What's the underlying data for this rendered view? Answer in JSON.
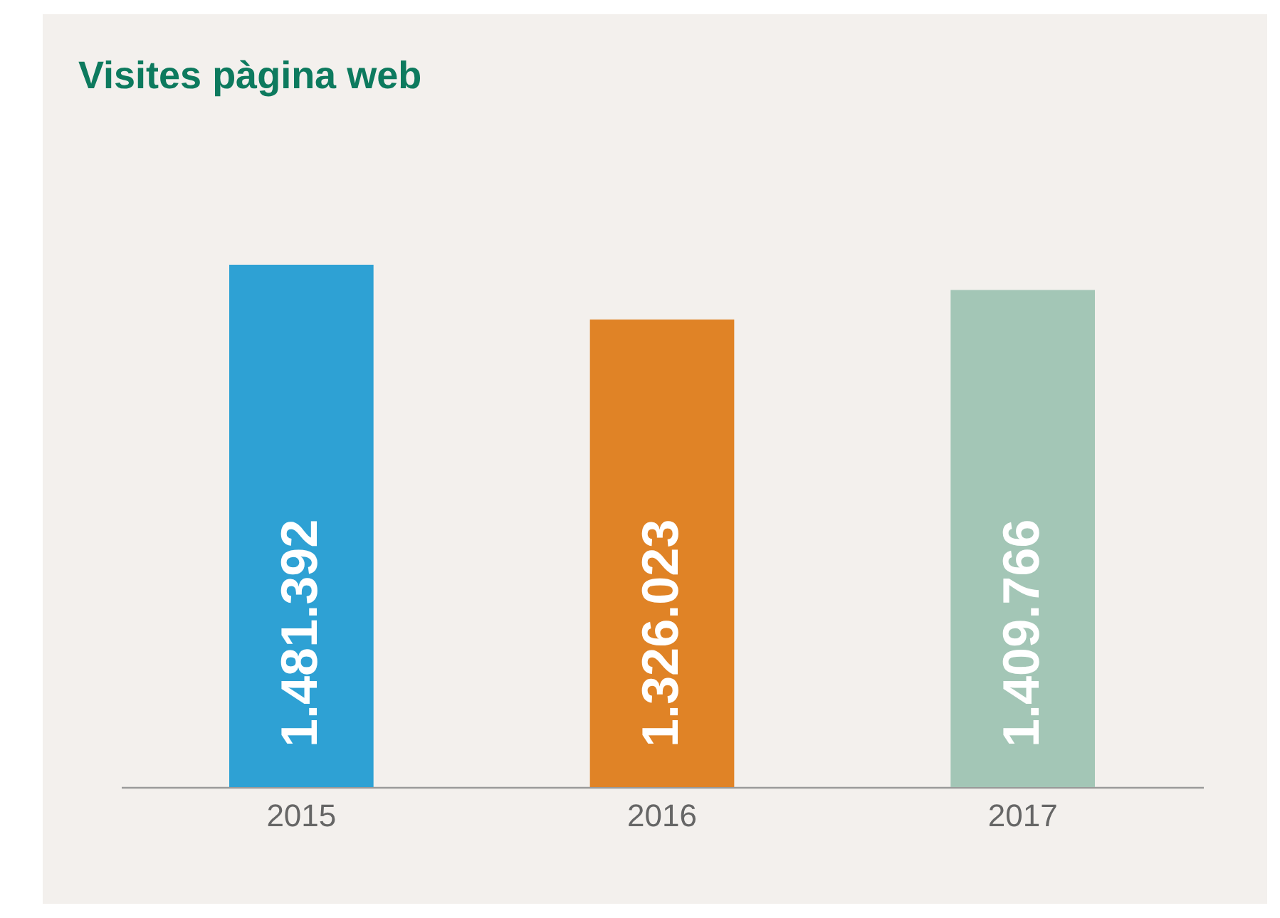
{
  "chart_data": {
    "type": "bar",
    "title": "Visites pàgina web",
    "categories": [
      "2015",
      "2016",
      "2017"
    ],
    "values": [
      1481392,
      1326023,
      1409766
    ],
    "value_labels": [
      "1.481.392",
      "1.326.023",
      "1.409.766"
    ],
    "colors": [
      "#2ea1d4",
      "#e08326",
      "#a3c6b6"
    ],
    "legend": false
  }
}
